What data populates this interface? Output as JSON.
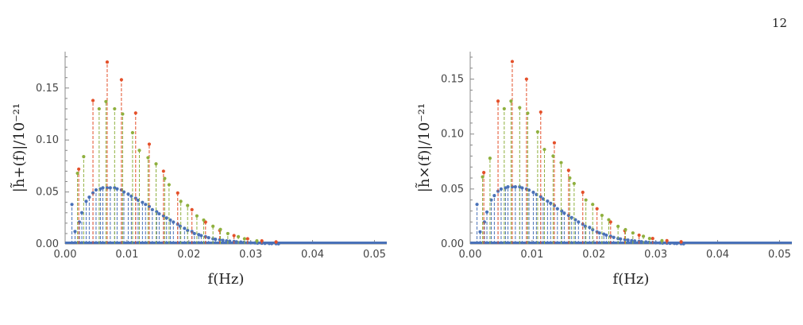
{
  "page": {
    "number": "12"
  },
  "colors": {
    "blue": "#4A72B8",
    "orange": "#E4502A",
    "green": "#8FB03E",
    "axis": "#888888"
  },
  "chart_data": [
    {
      "type": "scatter",
      "style": "stem",
      "xlabel": "f(Hz)",
      "ylabel": "|h̃+(f)|/10⁻²¹",
      "xlim": [
        0,
        0.052
      ],
      "ylim": [
        0,
        0.185
      ],
      "xticks": [
        "0.00",
        "0.01",
        "0.02",
        "0.03",
        "0.04",
        "0.05"
      ],
      "yticks": [
        "0.00",
        "0.05",
        "0.10",
        "0.15"
      ],
      "series": [
        {
          "color": "blue",
          "dashed": true,
          "x": [
            0.0011,
            0.0016,
            0.0023,
            0.0027,
            0.0034,
            0.0039,
            0.0045,
            0.005,
            0.0057,
            0.0061,
            0.0068,
            0.0073,
            0.008,
            0.0084,
            0.0091,
            0.0095,
            0.0102,
            0.0107,
            0.0114,
            0.0118,
            0.0125,
            0.013,
            0.0136,
            0.0141,
            0.0148,
            0.0152,
            0.0159,
            0.0164,
            0.017,
            0.0175,
            0.0182,
            0.0186,
            0.0193,
            0.0198,
            0.0205,
            0.0209,
            0.0216,
            0.022,
            0.0227,
            0.0232,
            0.0239,
            0.0243,
            0.025,
            0.0255,
            0.0261,
            0.0266,
            0.0273,
            0.0277,
            0.0284,
            0.0289,
            0.0295,
            0.03,
            0.0307,
            0.0311,
            0.0318,
            0.0323,
            0.033,
            0.0334,
            0.0341,
            0.0345
          ],
          "y": [
            0.038,
            0.012,
            0.021,
            0.03,
            0.041,
            0.045,
            0.049,
            0.052,
            0.053,
            0.054,
            0.054,
            0.054,
            0.054,
            0.053,
            0.052,
            0.05,
            0.048,
            0.046,
            0.044,
            0.042,
            0.04,
            0.038,
            0.036,
            0.033,
            0.031,
            0.029,
            0.027,
            0.025,
            0.023,
            0.021,
            0.019,
            0.017,
            0.015,
            0.013,
            0.012,
            0.01,
            0.009,
            0.008,
            0.007,
            0.006,
            0.005,
            0.0045,
            0.004,
            0.0035,
            0.003,
            0.0027,
            0.0024,
            0.002,
            0.0018,
            0.0015,
            0.0013,
            0.0011,
            0.001,
            0.0008,
            0.0007,
            0.0006,
            0.0005,
            0.0004,
            0.0003,
            0.0002
          ]
        },
        {
          "color": "orange",
          "dashed": true,
          "x": [
            0.0022,
            0.0045,
            0.0068,
            0.0091,
            0.0114,
            0.0136,
            0.0159,
            0.0182,
            0.0205,
            0.0227,
            0.025,
            0.0273,
            0.0295,
            0.0318,
            0.0341
          ],
          "y": [
            0.072,
            0.138,
            0.175,
            0.158,
            0.126,
            0.096,
            0.07,
            0.049,
            0.033,
            0.021,
            0.013,
            0.008,
            0.005,
            0.003,
            0.002
          ]
        },
        {
          "color": "green",
          "dashed": true,
          "x": [
            0.002,
            0.003,
            0.0055,
            0.0066,
            0.008,
            0.0093,
            0.0109,
            0.012,
            0.0134,
            0.0147,
            0.0161,
            0.0168,
            0.0187,
            0.0198,
            0.0213,
            0.0224,
            0.0239,
            0.0251,
            0.0263,
            0.028,
            0.029,
            0.031
          ],
          "y": [
            0.068,
            0.084,
            0.13,
            0.137,
            0.13,
            0.125,
            0.107,
            0.09,
            0.083,
            0.077,
            0.063,
            0.057,
            0.041,
            0.037,
            0.027,
            0.023,
            0.017,
            0.014,
            0.01,
            0.007,
            0.005,
            0.003
          ]
        }
      ]
    },
    {
      "type": "scatter",
      "style": "stem",
      "xlabel": "f(Hz)",
      "ylabel": "|h̃×(f)|/10⁻²¹",
      "xlim": [
        0,
        0.052
      ],
      "ylim": [
        0,
        0.175
      ],
      "xticks": [
        "0.00",
        "0.01",
        "0.02",
        "0.03",
        "0.04",
        "0.05"
      ],
      "yticks": [
        "0.00",
        "0.05",
        "0.10",
        "0.15"
      ],
      "series": [
        {
          "color": "blue",
          "dashed": true,
          "x": [
            0.0011,
            0.0016,
            0.0023,
            0.0027,
            0.0034,
            0.0039,
            0.0045,
            0.005,
            0.0057,
            0.0061,
            0.0068,
            0.0073,
            0.008,
            0.0084,
            0.0091,
            0.0095,
            0.0102,
            0.0107,
            0.0114,
            0.0118,
            0.0125,
            0.013,
            0.0136,
            0.0141,
            0.0148,
            0.0152,
            0.0159,
            0.0164,
            0.017,
            0.0175,
            0.0182,
            0.0186,
            0.0193,
            0.0198,
            0.0205,
            0.0209,
            0.0216,
            0.022,
            0.0227,
            0.0232,
            0.0239,
            0.0243,
            0.025,
            0.0255,
            0.0261,
            0.0266,
            0.0273,
            0.0277,
            0.0284,
            0.0289,
            0.0295,
            0.03,
            0.0307,
            0.0311,
            0.0318,
            0.0323,
            0.033,
            0.0334,
            0.0341,
            0.0345
          ],
          "y": [
            0.036,
            0.011,
            0.02,
            0.029,
            0.04,
            0.044,
            0.048,
            0.05,
            0.051,
            0.052,
            0.052,
            0.052,
            0.052,
            0.051,
            0.05,
            0.049,
            0.047,
            0.045,
            0.043,
            0.041,
            0.039,
            0.037,
            0.035,
            0.032,
            0.03,
            0.028,
            0.026,
            0.024,
            0.022,
            0.02,
            0.018,
            0.016,
            0.015,
            0.013,
            0.011,
            0.01,
            0.009,
            0.008,
            0.007,
            0.006,
            0.005,
            0.0045,
            0.004,
            0.0035,
            0.003,
            0.0027,
            0.0024,
            0.002,
            0.0018,
            0.0015,
            0.0013,
            0.0011,
            0.001,
            0.0008,
            0.0007,
            0.0006,
            0.0005,
            0.0004,
            0.0003,
            0.0002
          ]
        },
        {
          "color": "orange",
          "dashed": true,
          "x": [
            0.0022,
            0.0045,
            0.0068,
            0.0091,
            0.0114,
            0.0136,
            0.0159,
            0.0182,
            0.0205,
            0.0227,
            0.025,
            0.0273,
            0.0295,
            0.0318,
            0.0341
          ],
          "y": [
            0.065,
            0.13,
            0.166,
            0.15,
            0.12,
            0.092,
            0.067,
            0.047,
            0.032,
            0.02,
            0.012,
            0.008,
            0.005,
            0.003,
            0.002
          ]
        },
        {
          "color": "green",
          "dashed": true,
          "x": [
            0.002,
            0.0032,
            0.0055,
            0.0066,
            0.008,
            0.0093,
            0.0109,
            0.012,
            0.0134,
            0.0147,
            0.0161,
            0.0168,
            0.0187,
            0.0198,
            0.0213,
            0.0224,
            0.0239,
            0.0251,
            0.0263,
            0.028,
            0.029,
            0.031
          ],
          "y": [
            0.061,
            0.078,
            0.123,
            0.13,
            0.124,
            0.119,
            0.102,
            0.086,
            0.08,
            0.074,
            0.06,
            0.055,
            0.04,
            0.036,
            0.026,
            0.022,
            0.016,
            0.013,
            0.01,
            0.007,
            0.005,
            0.003
          ]
        }
      ]
    }
  ]
}
